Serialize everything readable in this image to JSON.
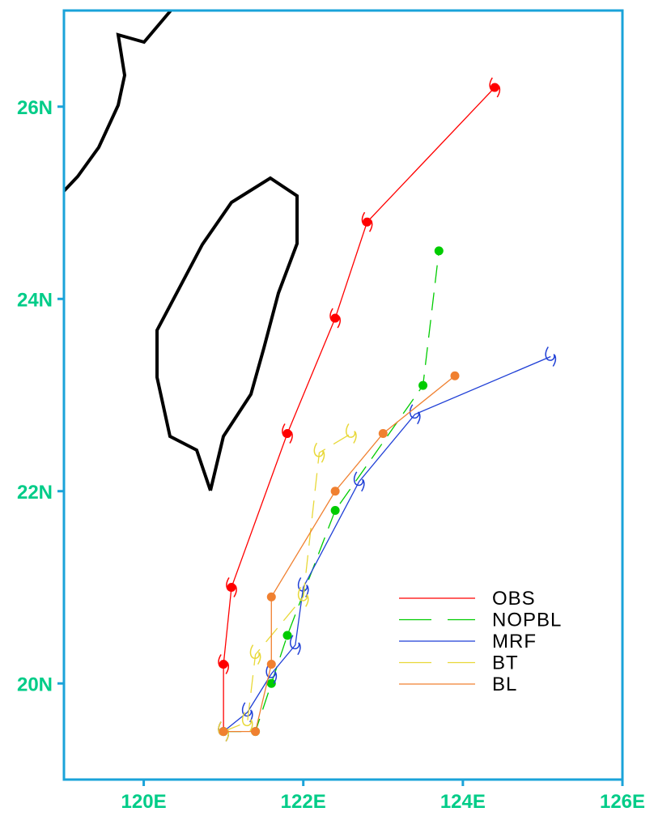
{
  "chart_data": {
    "type": "line",
    "xlim": [
      119,
      126
    ],
    "ylim": [
      19,
      27
    ],
    "xticks": [
      {
        "value": 120,
        "label": "120E"
      },
      {
        "value": 122,
        "label": "122E"
      },
      {
        "value": 124,
        "label": "124E"
      },
      {
        "value": 126,
        "label": "126E"
      }
    ],
    "yticks": [
      {
        "value": 20,
        "label": "20N"
      },
      {
        "value": 22,
        "label": "22N"
      },
      {
        "value": 24,
        "label": "24N"
      },
      {
        "value": 26,
        "label": "26N"
      }
    ],
    "series": [
      {
        "name": "OBS",
        "color": "#ff0000",
        "dashed": false,
        "marker": "dot-symbol",
        "x": [
          121.0,
          121.0,
          121.1,
          121.8,
          122.4,
          122.8,
          124.4
        ],
        "values": [
          19.5,
          20.2,
          21.0,
          22.6,
          23.8,
          24.8,
          26.2
        ]
      },
      {
        "name": "NOPBL",
        "color": "#00cc00",
        "dashed": true,
        "marker": "dot",
        "x": [
          121.0,
          121.4,
          121.6,
          121.8,
          122.4,
          123.5,
          123.7
        ],
        "values": [
          19.5,
          19.5,
          20.0,
          20.5,
          21.8,
          23.1,
          24.5
        ]
      },
      {
        "name": "MRF",
        "color": "#1f3fd6",
        "dashed": false,
        "marker": "symbol",
        "x": [
          121.0,
          121.3,
          121.6,
          121.9,
          122.0,
          122.7,
          123.4,
          125.1
        ],
        "values": [
          19.5,
          19.7,
          20.1,
          20.4,
          21.0,
          22.1,
          22.8,
          23.4
        ]
      },
      {
        "name": "BT",
        "color": "#e8d838",
        "dashed": true,
        "marker": "symbol",
        "x": [
          121.0,
          121.3,
          121.4,
          122.0,
          122.2,
          122.6
        ],
        "values": [
          19.5,
          19.6,
          20.3,
          20.9,
          22.4,
          22.6
        ]
      },
      {
        "name": "BL",
        "color": "#f08030",
        "dashed": false,
        "marker": "dot",
        "x": [
          121.0,
          121.4,
          121.6,
          121.6,
          122.4,
          123.0,
          123.9
        ],
        "values": [
          19.5,
          19.5,
          20.2,
          20.9,
          22.0,
          22.6,
          23.2
        ]
      }
    ]
  }
}
